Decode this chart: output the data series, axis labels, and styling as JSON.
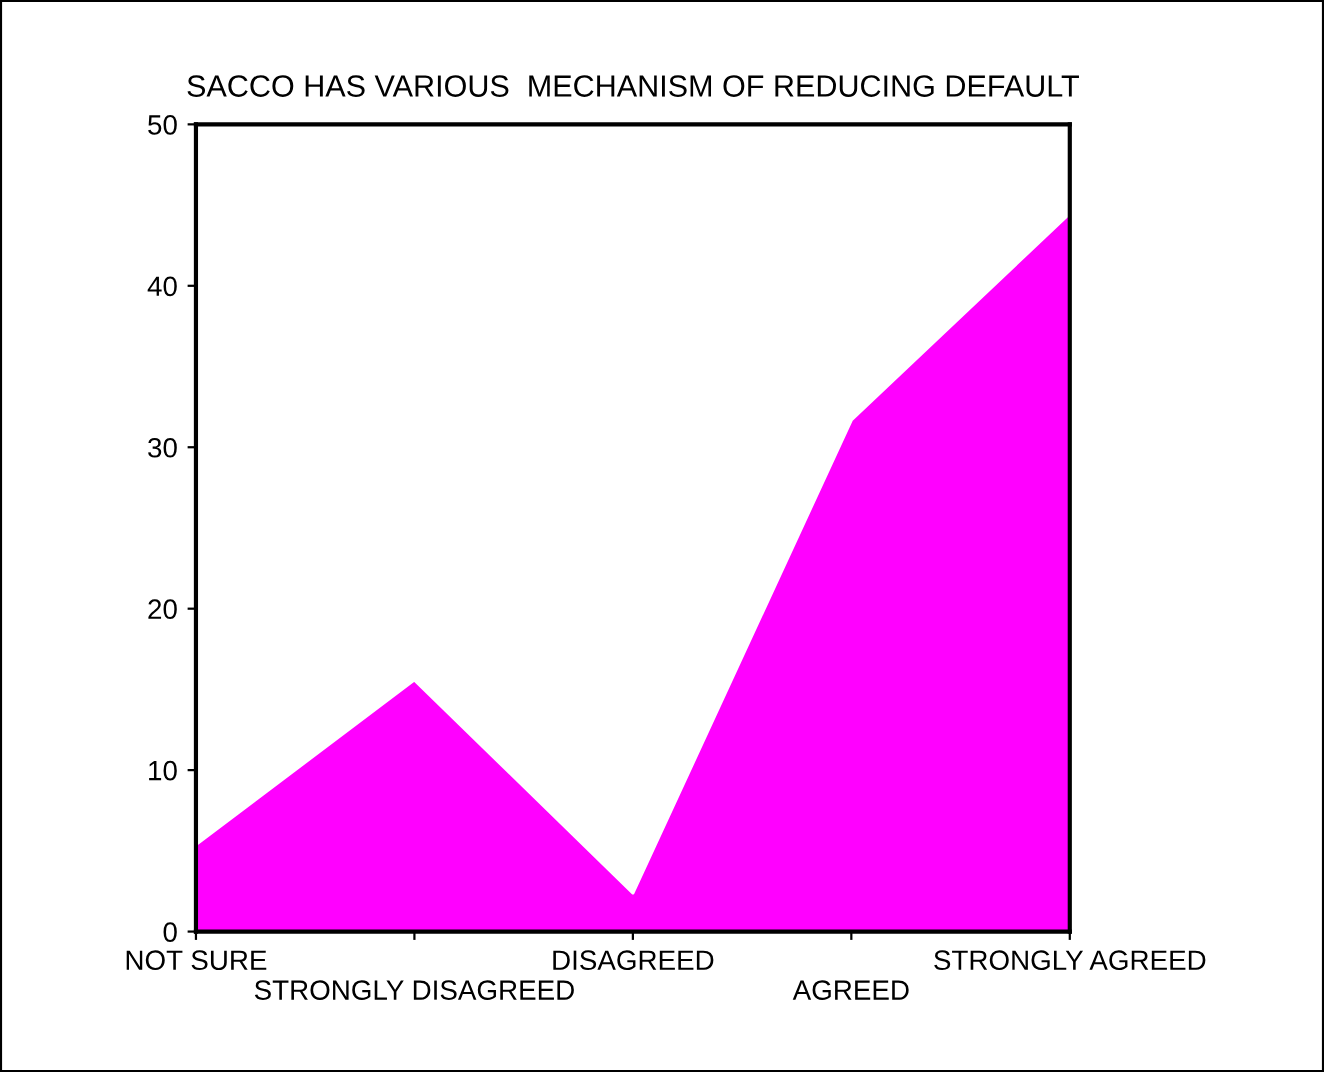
{
  "chart_data": {
    "type": "area",
    "title": "SACCO HAS VARIOUS  MECHANISM OF REDUCING DEFAULT",
    "categories": [
      "NOT SURE",
      "STRONGLY DISAGREED",
      "DISAGREED",
      "AGREED",
      "STRONGLY AGREED"
    ],
    "values": [
      5.4,
      15.6,
      2.4,
      31.7,
      44.5
    ],
    "color": "#ff00ff",
    "ylim": [
      0,
      50
    ],
    "yticks": [
      0,
      10,
      20,
      30,
      40,
      50
    ],
    "grid": false,
    "legend": false
  }
}
